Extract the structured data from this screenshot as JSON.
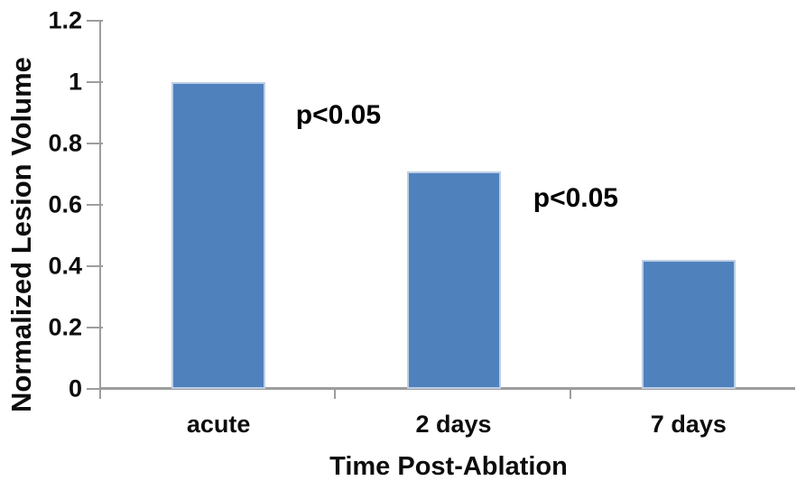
{
  "chart_data": {
    "type": "bar",
    "title": "",
    "categories": [
      "acute",
      "2 days",
      "7 days"
    ],
    "values": [
      1.0,
      0.71,
      0.42
    ],
    "xlabel": "Time Post-Ablation",
    "ylabel": "Normalized Lesion Volume",
    "ylim": [
      0,
      1.2
    ],
    "ytick_step": 0.2,
    "ytick_labels": [
      "0",
      "0.2",
      "0.4",
      "0.6",
      "0.8",
      "1",
      "1.2"
    ],
    "grid": false,
    "legend": "none",
    "annotations": [
      {
        "text": "p<0.05",
        "between": [
          "acute",
          "2 days"
        ],
        "x": 0.51,
        "y": 0.89
      },
      {
        "text": "p<0.05",
        "between": [
          "2 days",
          "7 days"
        ],
        "x": 1.52,
        "y": 0.62
      }
    ],
    "colors": {
      "bar_fill": "#4F81BD",
      "bar_border": "#BDCEE4",
      "axis": "#9D9D9D",
      "text": "#0D0D0D",
      "background": "#FFFFFF"
    }
  }
}
